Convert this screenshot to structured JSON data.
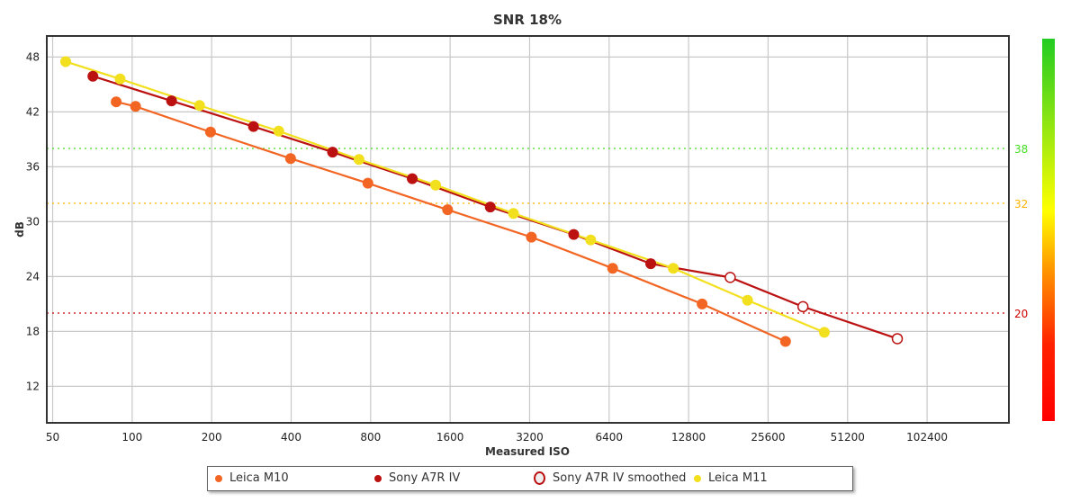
{
  "chart_data": {
    "type": "line",
    "title": "SNR 18%",
    "xlabel": "Measured ISO",
    "ylabel": "dB",
    "xscale": "log2",
    "xlim": [
      47.5,
      209000
    ],
    "ylim": [
      8,
      50.3
    ],
    "xticks": [
      50,
      100,
      200,
      400,
      800,
      1600,
      3200,
      6400,
      12800,
      25600,
      51200,
      102400
    ],
    "yticks": [
      12,
      18,
      24,
      30,
      36,
      42,
      48
    ],
    "grid": true,
    "legend_position": "bottom",
    "reference_lines": [
      {
        "value": 38,
        "label": "38",
        "color": "#44dd22"
      },
      {
        "value": 32,
        "label": "32",
        "color": "#ffb400"
      },
      {
        "value": 20,
        "label": "20",
        "color": "#cc0000"
      }
    ],
    "colorbar": {
      "colors": [
        "#22cc22",
        "#ffff00",
        "#ff8800",
        "#ff0000"
      ]
    },
    "series": [
      {
        "name": "Leica M10",
        "color": "#f26522",
        "marker": "filled",
        "x": [
          87,
          103,
          198,
          398,
          781,
          1565,
          3250,
          6600,
          14400,
          29800
        ],
        "y": [
          43.1,
          42.6,
          39.8,
          36.9,
          34.2,
          31.3,
          28.3,
          24.9,
          21.0,
          16.9
        ]
      },
      {
        "name": "Sony A7R IV",
        "color": "#bb1111",
        "marker": "filled",
        "x": [
          71,
          141,
          288,
          574,
          1150,
          2270,
          4700,
          9200
        ],
        "y": [
          45.9,
          43.2,
          40.4,
          37.6,
          34.7,
          31.6,
          28.6,
          25.4
        ]
      },
      {
        "name": "Sony A7R IV smoothed",
        "color": "#bb1111",
        "marker": "hollow",
        "continues": "Sony A7R IV",
        "x": [
          18400,
          34700,
          79000
        ],
        "y": [
          23.9,
          20.7,
          17.2
        ]
      },
      {
        "name": "Leica M11",
        "color": "#f2e01e",
        "marker": "filled",
        "x": [
          56,
          90,
          180,
          359,
          723,
          1410,
          2780,
          5450,
          11200,
          21400,
          41800
        ],
        "y": [
          47.5,
          45.6,
          42.7,
          39.9,
          36.8,
          34.0,
          30.9,
          28.0,
          24.9,
          21.4,
          17.9
        ]
      }
    ]
  }
}
